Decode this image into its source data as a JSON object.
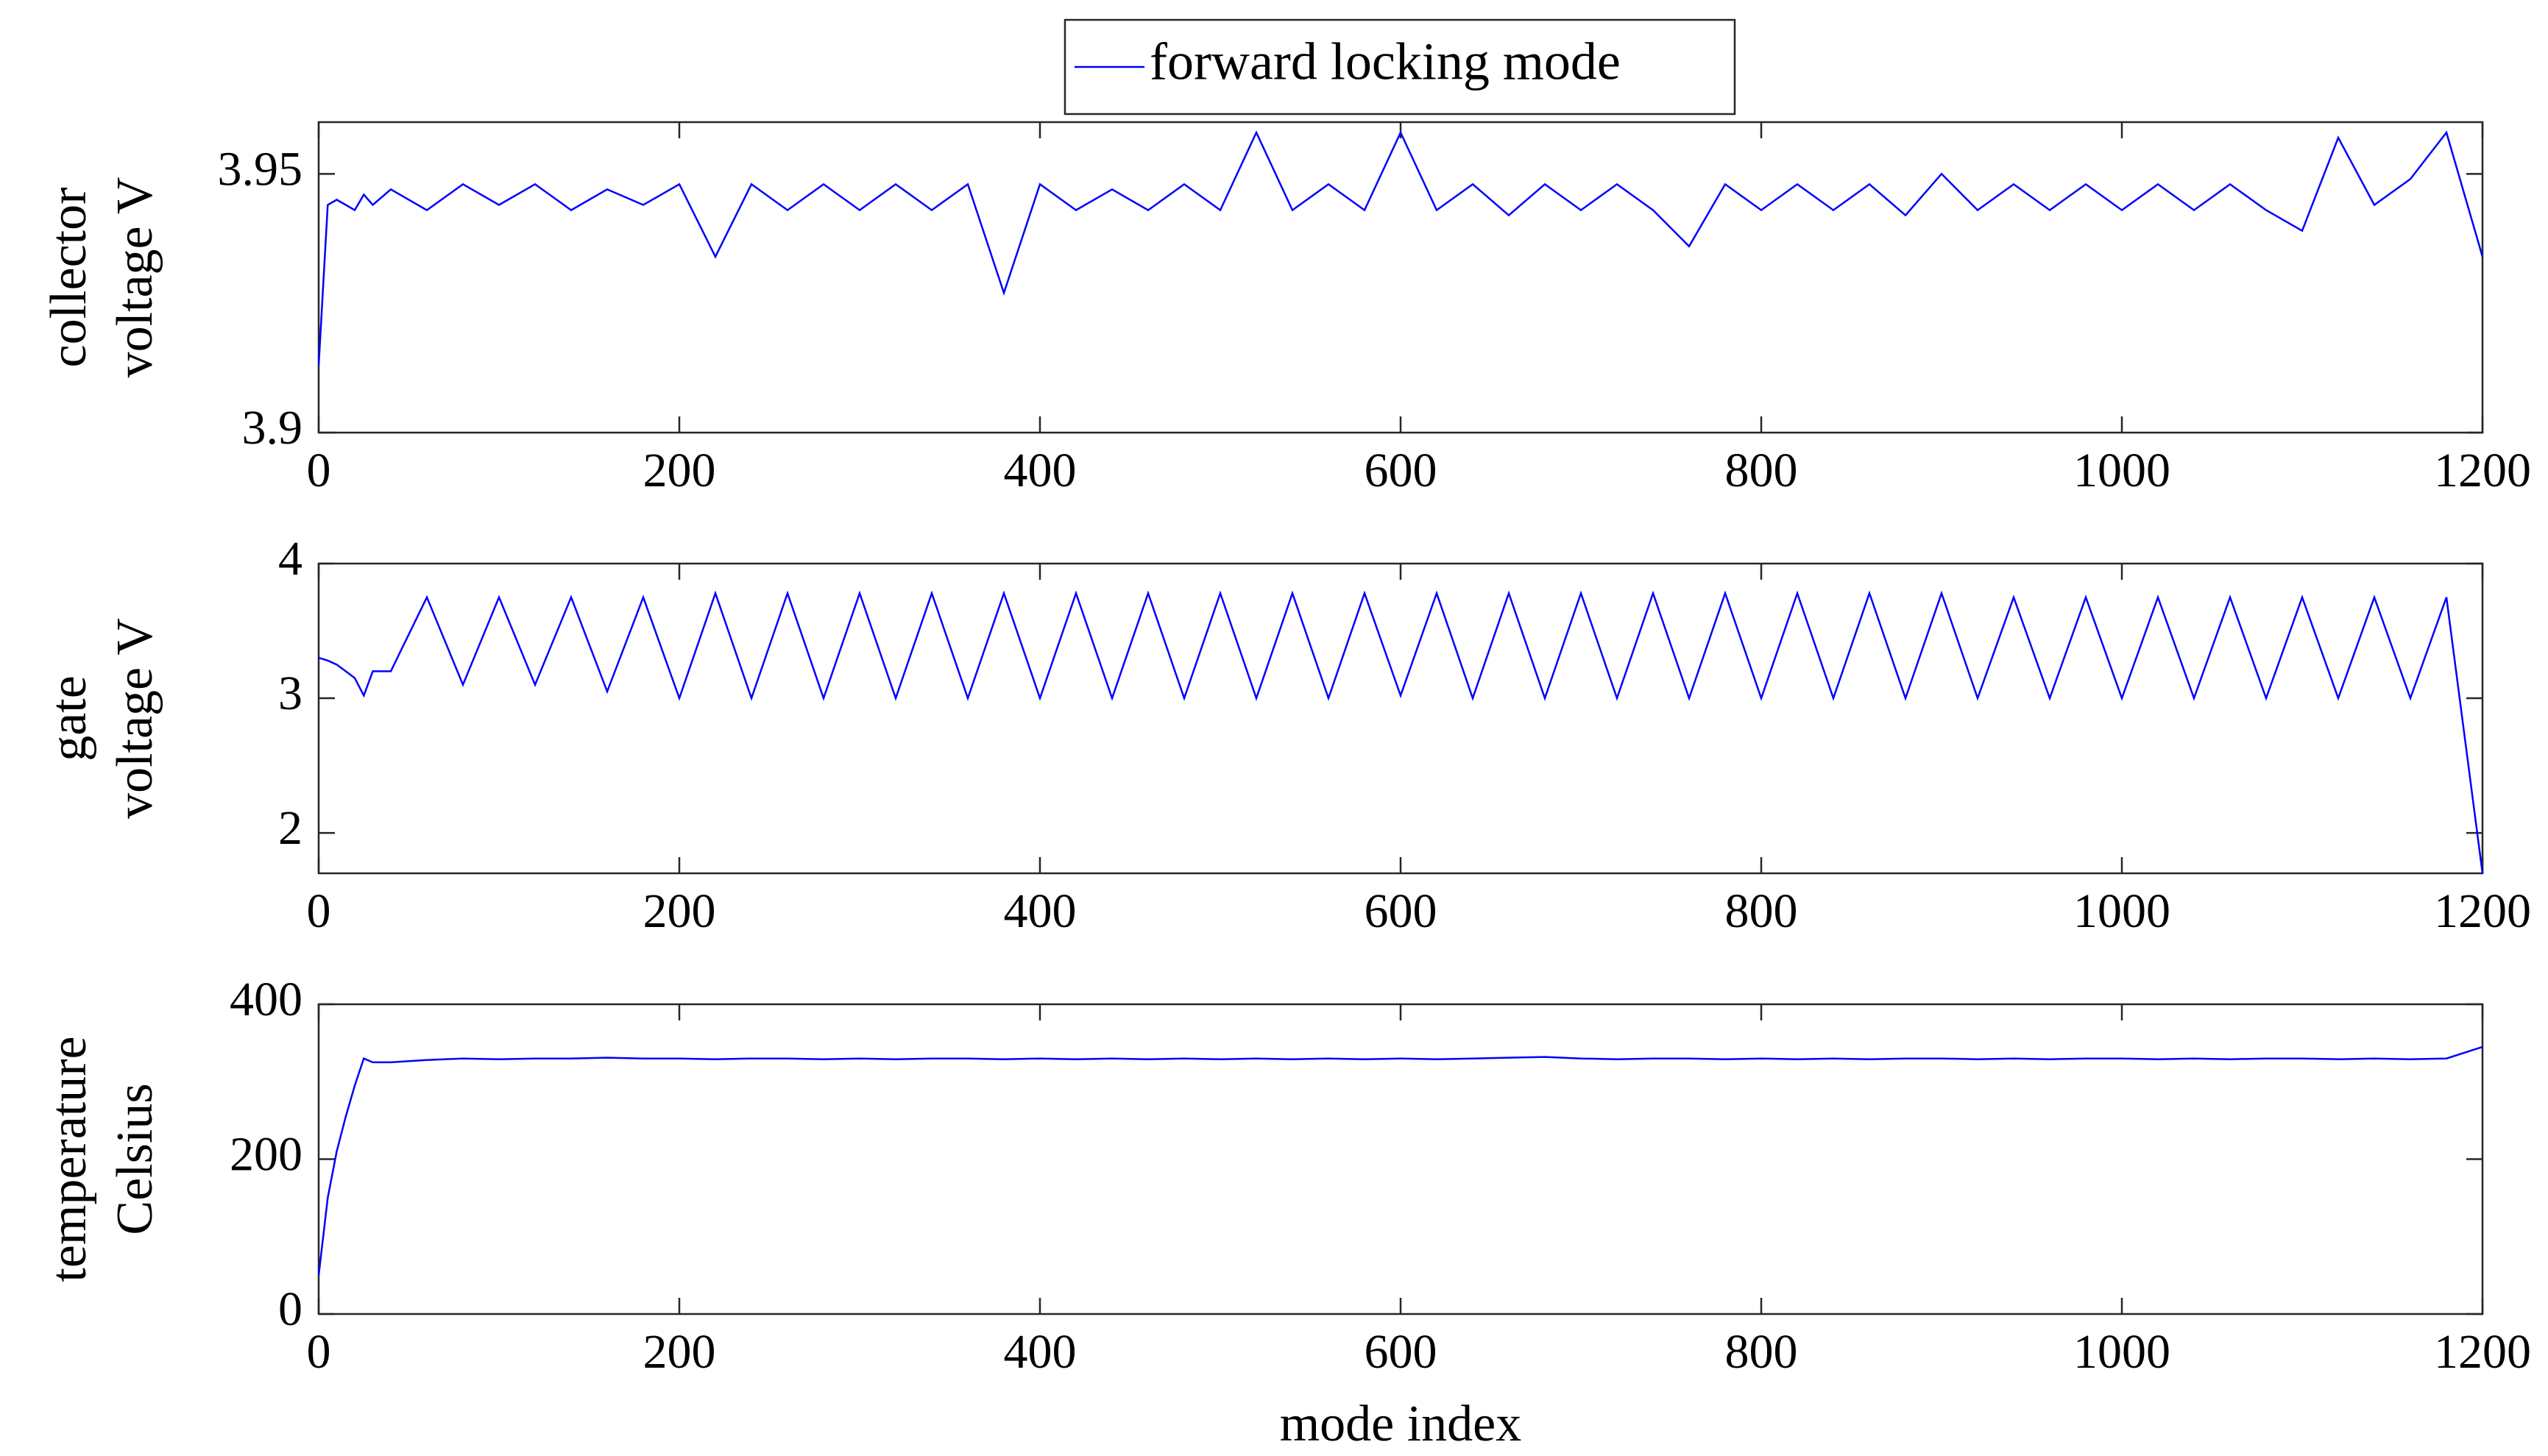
{
  "chart_data": [
    {
      "type": "line",
      "ylabel": [
        "collector",
        "voltage V"
      ],
      "legend": "top",
      "x": [
        0,
        5,
        10,
        15,
        20,
        25,
        30,
        40,
        60,
        80,
        100,
        120,
        140,
        160,
        180,
        200,
        220,
        240,
        260,
        280,
        300,
        320,
        340,
        360,
        380,
        400,
        420,
        440,
        460,
        480,
        500,
        520,
        540,
        560,
        580,
        600,
        620,
        640,
        660,
        680,
        700,
        720,
        740,
        760,
        780,
        800,
        820,
        840,
        860,
        880,
        900,
        920,
        940,
        960,
        980,
        1000,
        1020,
        1040,
        1060,
        1080,
        1100,
        1120,
        1140,
        1160,
        1180,
        1200
      ],
      "series": [
        {
          "name": "forward locking mode",
          "color": "#0000ff",
          "values": [
            3.913,
            3.944,
            3.945,
            3.944,
            3.943,
            3.946,
            3.944,
            3.947,
            3.943,
            3.948,
            3.944,
            3.948,
            3.943,
            3.947,
            3.944,
            3.948,
            3.934,
            3.948,
            3.943,
            3.948,
            3.943,
            3.948,
            3.943,
            3.948,
            3.927,
            3.948,
            3.943,
            3.947,
            3.943,
            3.948,
            3.943,
            3.958,
            3.943,
            3.948,
            3.943,
            3.958,
            3.943,
            3.948,
            3.942,
            3.948,
            3.943,
            3.948,
            3.943,
            3.936,
            3.948,
            3.943,
            3.948,
            3.943,
            3.948,
            3.942,
            3.95,
            3.943,
            3.948,
            3.943,
            3.948,
            3.943,
            3.948,
            3.943,
            3.948,
            3.943,
            3.939,
            3.957,
            3.944,
            3.949,
            3.958,
            3.934
          ]
        }
      ],
      "xlim": [
        0,
        1200
      ],
      "xticks": [
        0,
        200,
        400,
        600,
        800,
        1000,
        1200
      ],
      "ylim": [
        3.9,
        3.96
      ],
      "yticks": [
        3.9,
        3.95
      ]
    },
    {
      "type": "line",
      "ylabel": [
        "gate",
        "voltage V"
      ],
      "x": [
        0,
        5,
        10,
        15,
        20,
        25,
        30,
        40,
        60,
        80,
        100,
        120,
        140,
        160,
        180,
        200,
        220,
        240,
        260,
        280,
        300,
        320,
        340,
        360,
        380,
        400,
        420,
        440,
        460,
        480,
        500,
        520,
        540,
        560,
        580,
        600,
        620,
        640,
        660,
        680,
        700,
        720,
        740,
        760,
        780,
        800,
        820,
        840,
        860,
        880,
        900,
        920,
        940,
        960,
        980,
        1000,
        1020,
        1040,
        1060,
        1080,
        1100,
        1120,
        1140,
        1160,
        1180,
        1200
      ],
      "series": [
        {
          "name": "forward locking mode",
          "color": "#0000ff",
          "values": [
            3.3,
            3.28,
            3.25,
            3.2,
            3.15,
            3.02,
            3.2,
            3.2,
            3.75,
            3.1,
            3.75,
            3.1,
            3.75,
            3.05,
            3.75,
            3.0,
            3.78,
            3.0,
            3.78,
            3.0,
            3.78,
            3.0,
            3.78,
            3.0,
            3.78,
            3.0,
            3.78,
            3.0,
            3.78,
            3.0,
            3.78,
            3.0,
            3.78,
            3.0,
            3.78,
            3.02,
            3.78,
            3.0,
            3.78,
            3.0,
            3.78,
            3.0,
            3.78,
            3.0,
            3.78,
            3.0,
            3.78,
            3.0,
            3.78,
            3.0,
            3.78,
            3.0,
            3.75,
            3.0,
            3.75,
            3.0,
            3.75,
            3.0,
            3.75,
            3.0,
            3.75,
            3.0,
            3.75,
            3.0,
            3.75,
            1.7
          ]
        }
      ],
      "xlim": [
        0,
        1200
      ],
      "xticks": [
        0,
        200,
        400,
        600,
        800,
        1000,
        1200
      ],
      "ylim": [
        1.7,
        4
      ],
      "yticks": [
        2,
        3,
        4
      ]
    },
    {
      "type": "line",
      "ylabel": [
        "temperature",
        "Celsius"
      ],
      "xlabel": "mode index",
      "x": [
        0,
        5,
        10,
        15,
        20,
        25,
        30,
        40,
        60,
        80,
        100,
        120,
        140,
        160,
        180,
        200,
        220,
        240,
        260,
        280,
        300,
        320,
        340,
        360,
        380,
        400,
        420,
        440,
        460,
        480,
        500,
        520,
        540,
        560,
        580,
        600,
        620,
        640,
        660,
        680,
        700,
        720,
        740,
        760,
        780,
        800,
        820,
        840,
        860,
        880,
        900,
        920,
        940,
        960,
        980,
        1000,
        1020,
        1040,
        1060,
        1080,
        1100,
        1120,
        1140,
        1160,
        1180,
        1200
      ],
      "series": [
        {
          "name": "forward locking mode",
          "color": "#0000ff",
          "values": [
            50,
            150,
            210,
            255,
            295,
            330,
            325,
            325,
            328,
            330,
            329,
            330,
            330,
            331,
            330,
            330,
            329,
            330,
            330,
            329,
            330,
            329,
            330,
            330,
            329,
            330,
            329,
            330,
            329,
            330,
            329,
            330,
            329,
            330,
            329,
            330,
            329,
            330,
            331,
            332,
            330,
            329,
            330,
            330,
            329,
            330,
            329,
            330,
            329,
            330,
            330,
            329,
            330,
            329,
            330,
            330,
            329,
            330,
            329,
            330,
            330,
            329,
            330,
            329,
            330,
            345
          ]
        }
      ],
      "xlim": [
        0,
        1200
      ],
      "xticks": [
        0,
        200,
        400,
        600,
        800,
        1000,
        1200
      ],
      "ylim": [
        0,
        400
      ],
      "yticks": [
        0,
        200,
        400
      ]
    }
  ]
}
